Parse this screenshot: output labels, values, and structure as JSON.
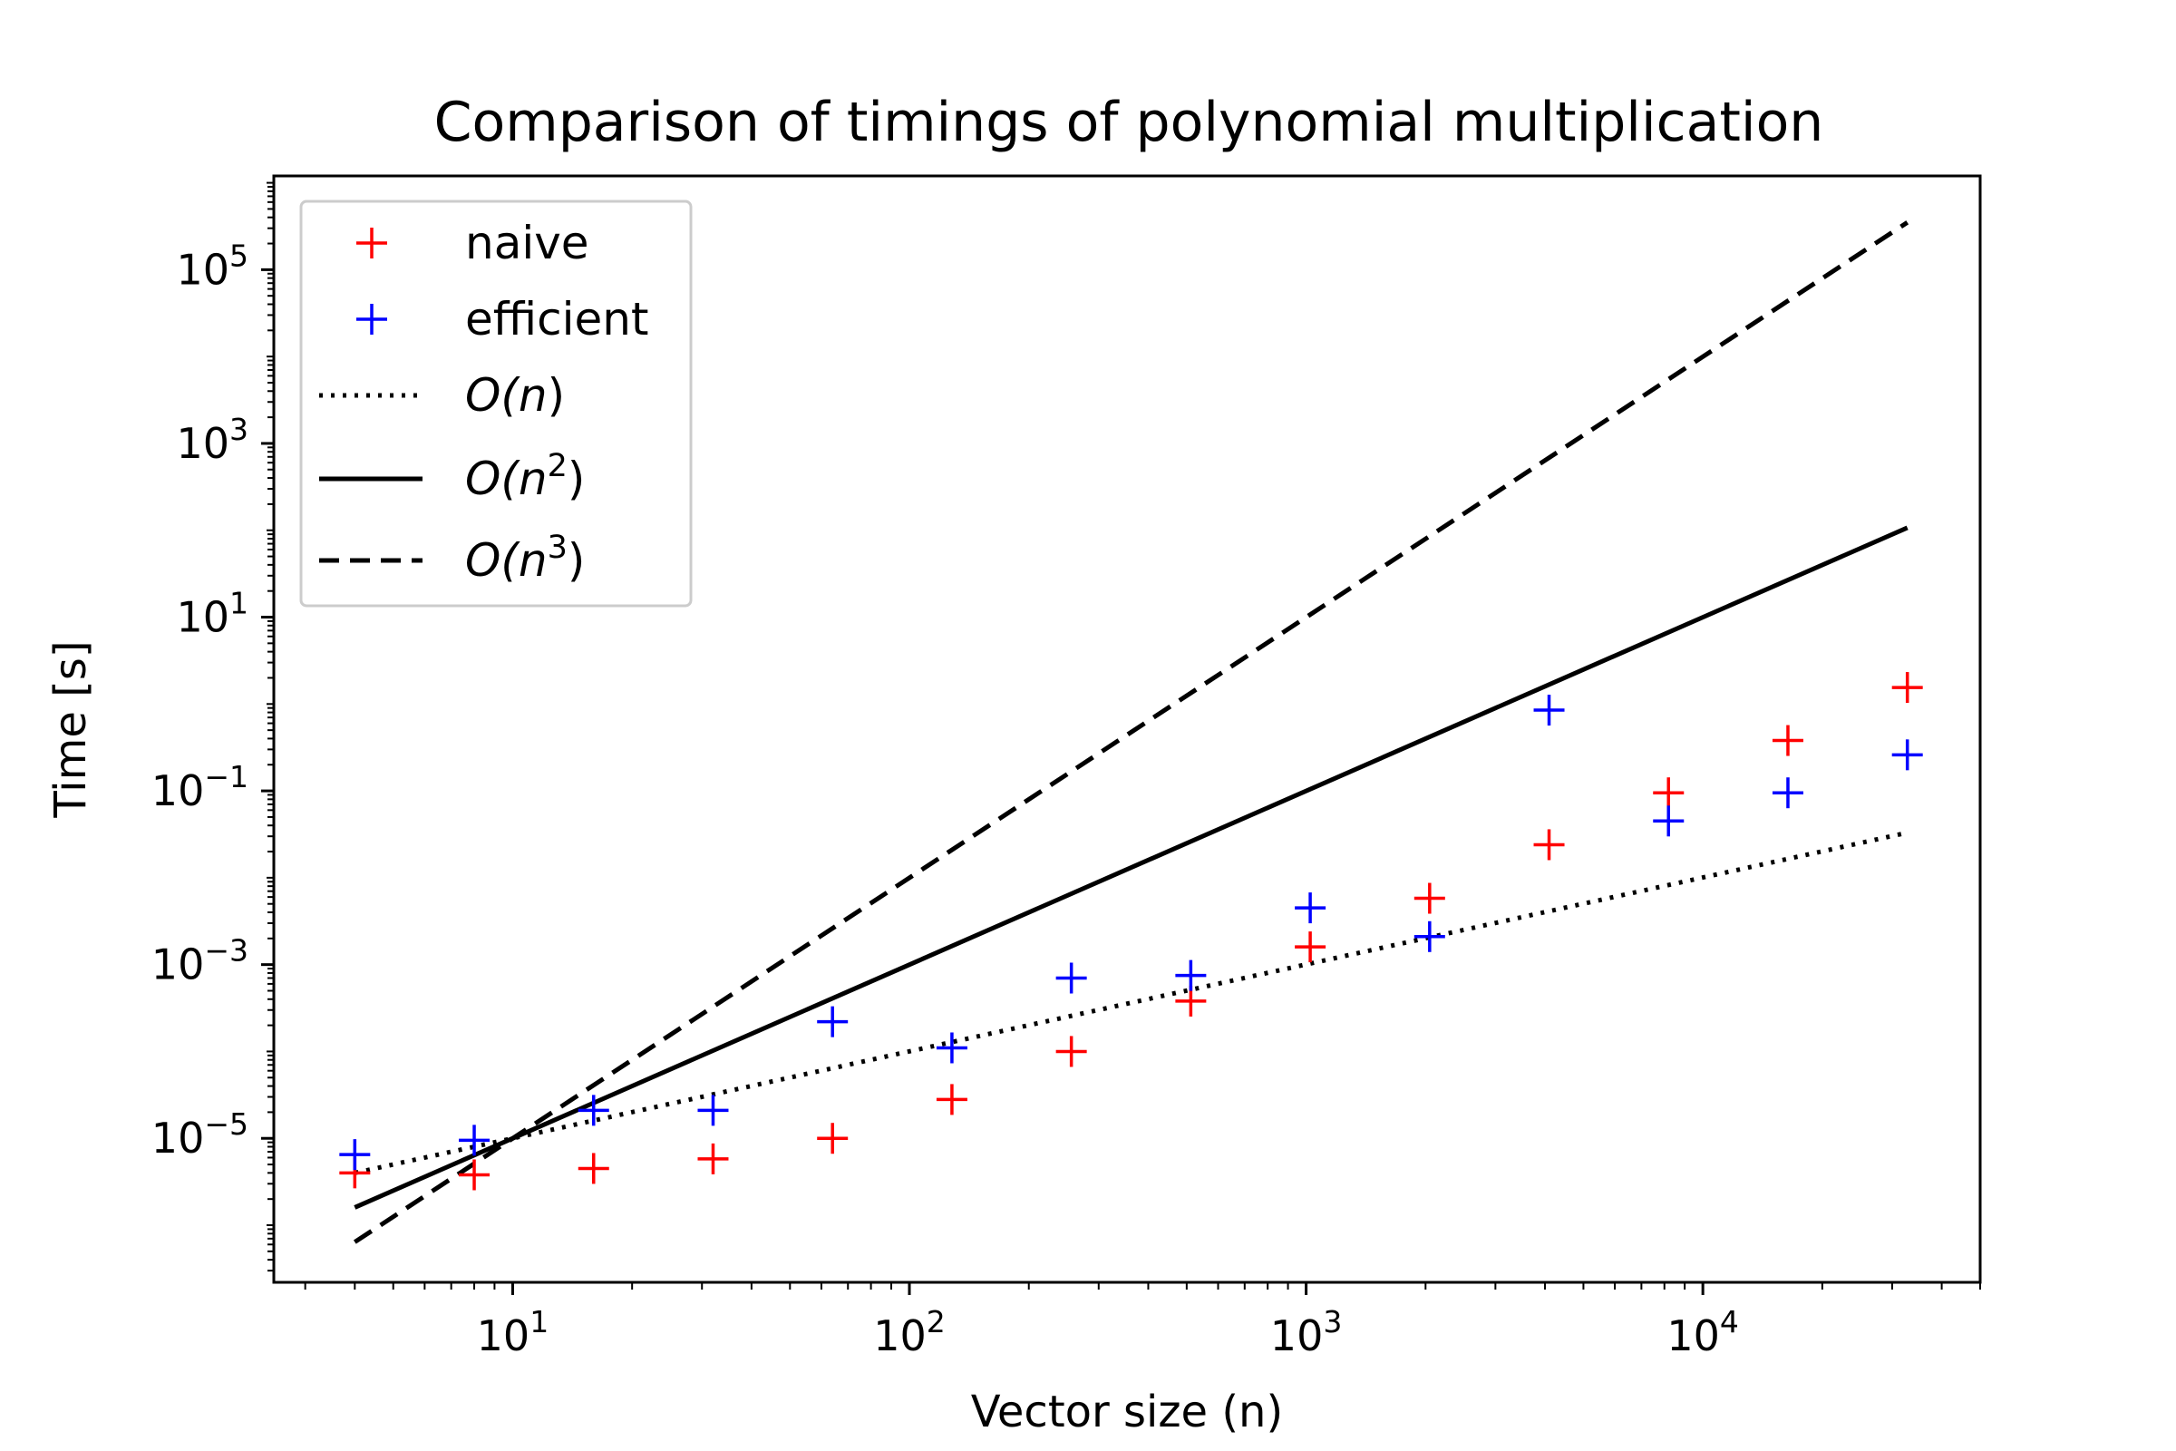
{
  "chart_data": {
    "type": "scatter",
    "title": "Comparison of timings of polynomial multiplication",
    "xlabel": "Vector size (n)",
    "ylabel": "Time [s]",
    "xscale": "log",
    "yscale": "log",
    "xlim": [
      2.5,
      50000
    ],
    "ylim": [
      2.2e-07,
      1200000.0
    ],
    "x_ticks": [
      {
        "value": 10,
        "base": "10",
        "exp": "1"
      },
      {
        "value": 100,
        "base": "10",
        "exp": "2"
      },
      {
        "value": 1000,
        "base": "10",
        "exp": "3"
      },
      {
        "value": 10000,
        "base": "10",
        "exp": "4"
      }
    ],
    "y_ticks": [
      {
        "value": 1e-05,
        "base": "10",
        "exp": "−5"
      },
      {
        "value": 0.001,
        "base": "10",
        "exp": "−3"
      },
      {
        "value": 0.1,
        "base": "10",
        "exp": "−1"
      },
      {
        "value": 10,
        "base": "10",
        "exp": "1"
      },
      {
        "value": 1000,
        "base": "10",
        "exp": "3"
      },
      {
        "value": 100000,
        "base": "10",
        "exp": "5"
      }
    ],
    "legend_position": "top-left",
    "grid": false,
    "scatter_series": [
      {
        "name": "naive",
        "color": "#ff0000",
        "marker": "plus",
        "x": [
          4,
          8,
          16,
          32,
          64,
          128,
          256,
          512,
          1024,
          2048,
          4096,
          8192,
          16384,
          32768
        ],
        "y": [
          4e-06,
          3.8e-06,
          4.5e-06,
          5.8e-06,
          1e-05,
          2.8e-05,
          0.0001,
          0.00038,
          0.0016,
          0.0058,
          0.024,
          0.095,
          0.38,
          1.55
        ]
      },
      {
        "name": "efficient",
        "color": "#0000ff",
        "marker": "plus",
        "x": [
          4,
          8,
          16,
          32,
          64,
          128,
          256,
          512,
          1024,
          2048,
          4096,
          8192,
          16384,
          32768
        ],
        "y": [
          6.5e-06,
          9.5e-06,
          2.1e-05,
          2.1e-05,
          0.00022,
          0.00011,
          0.0007,
          0.00075,
          0.0045,
          0.0021,
          0.85,
          0.045,
          0.095,
          0.26
        ]
      }
    ],
    "line_series": [
      {
        "label_O": "O(",
        "label_n": "n",
        "label_exp": "",
        "label_close": ")",
        "style": "dotted",
        "color": "#000000",
        "power": 1,
        "x": [
          4,
          32768
        ],
        "y": [
          4e-06,
          0.033
        ]
      },
      {
        "label_O": "O(",
        "label_n": "n",
        "label_exp": "2",
        "label_close": ")",
        "style": "solid",
        "color": "#000000",
        "power": 2,
        "x": [
          4,
          32768
        ],
        "y": [
          1.6e-06,
          107
        ]
      },
      {
        "label_O": "O(",
        "label_n": "n",
        "label_exp": "3",
        "label_close": ")",
        "style": "dashed",
        "color": "#000000",
        "power": 3,
        "x": [
          4,
          32768
        ],
        "y": [
          6.4e-07,
          350000.0
        ]
      }
    ]
  }
}
